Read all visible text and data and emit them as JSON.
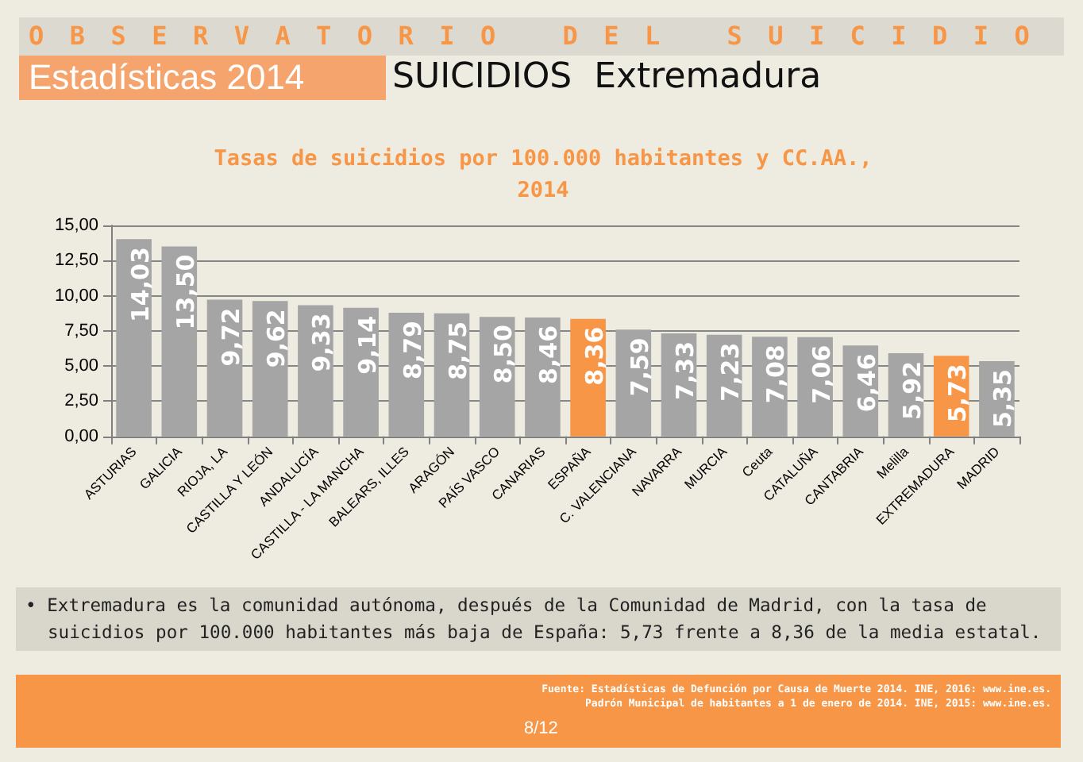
{
  "chart_data": {
    "type": "bar",
    "title": "Tasas de suicidios por 100.000 habitantes y CC.AA.,\n2014",
    "annotations": [
      "O B S E R V A T O R I O   D E L   S U I C I D I O",
      "Estadísticas 2014",
      "SUICIDIOS  Extremadura",
      "• Extremadura es la comunidad autónoma, después de la Comunidad de Madrid, con la tasa de suicidios por 100.000 habitantes más baja de España: 5,73 frente a 8,36 de la media estatal.",
      "Fuente: Estadísticas de Defunción por Causa de Muerte 2014. INE, 2016: www.ine.es.",
      "Padrón Municipal de habitantes a 1 de enero de 2014. INE, 2015: www.ine.es.",
      "8/12"
    ],
    "categories": [
      "ASTURIAS",
      "GALICIA",
      "RIOJA, LA",
      "CASTILLA Y LEÓN",
      "ANDALUCÍA",
      "CASTILLA - LA MANCHA",
      "BALEARS, ILLES",
      "ARAGÓN",
      "PAÍS VASCO",
      "CANARIAS",
      "ESPAÑA",
      "C. VALENCIANA",
      "NAVARRA",
      "MURCIA",
      "Ceuta",
      "CATALUÑA",
      "CANTABRIA",
      "Melilla",
      "EXTREMADURA",
      "MADRID"
    ],
    "values": [
      14.03,
      13.5,
      9.72,
      9.62,
      9.33,
      9.14,
      8.79,
      8.75,
      8.5,
      8.46,
      8.36,
      7.59,
      7.33,
      7.23,
      7.08,
      7.06,
      6.46,
      5.92,
      5.73,
      5.35
    ],
    "value_labels": [
      "14,03",
      "13,50",
      "9,72",
      "9,62",
      "9,33",
      "9,14",
      "8,79",
      "8,75",
      "8,50",
      "8,46",
      "8,36",
      "7,59",
      "7,33",
      "7,23",
      "7,08",
      "7,06",
      "6,46",
      "5,92",
      "5,73",
      "5,35"
    ],
    "colors": [
      "#a5a5a5",
      "#a5a5a5",
      "#a5a5a5",
      "#a5a5a5",
      "#a5a5a5",
      "#a5a5a5",
      "#a5a5a5",
      "#a5a5a5",
      "#a5a5a5",
      "#a5a5a5",
      "#f79646",
      "#a5a5a5",
      "#a5a5a5",
      "#a5a5a5",
      "#a5a5a5",
      "#a5a5a5",
      "#a5a5a5",
      "#a5a5a5",
      "#f79646",
      "#a5a5a5"
    ],
    "ylim": [
      0,
      15
    ],
    "yticks": [
      {
        "value": 0,
        "label": "0,00"
      },
      {
        "value": 2.5,
        "label": "2,50"
      },
      {
        "value": 5,
        "label": "5,00"
      },
      {
        "value": 7.5,
        "label": "7,50"
      },
      {
        "value": 10,
        "label": "10,00"
      },
      {
        "value": 12.5,
        "label": "12,50"
      },
      {
        "value": 15,
        "label": "15,00"
      }
    ],
    "grid": "y"
  }
}
